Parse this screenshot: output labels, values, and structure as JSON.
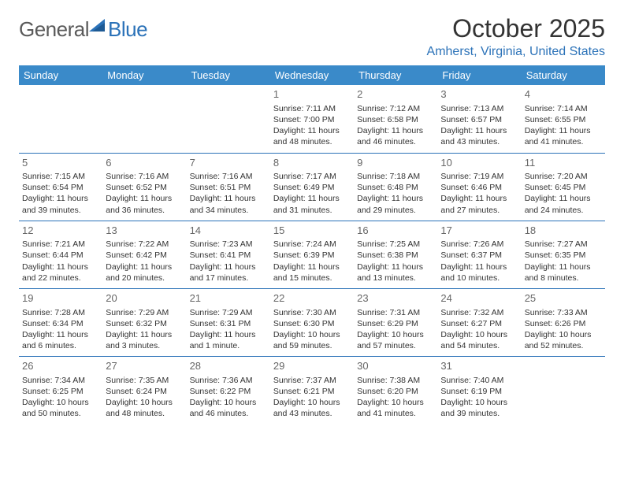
{
  "logo": {
    "text1": "General",
    "text2": "Blue"
  },
  "title": "October 2025",
  "location": "Amherst, Virginia, United States",
  "day_headers": [
    "Sunday",
    "Monday",
    "Tuesday",
    "Wednesday",
    "Thursday",
    "Friday",
    "Saturday"
  ],
  "colors": {
    "header_bg": "#3a8ac9",
    "accent": "#2b72b8",
    "text": "#333333",
    "daynum": "#666666"
  },
  "grid": {
    "leading_blanks": 3,
    "days": [
      {
        "n": 1,
        "sr": "7:11 AM",
        "ss": "7:00 PM",
        "dl": "Daylight: 11 hours and 48 minutes."
      },
      {
        "n": 2,
        "sr": "7:12 AM",
        "ss": "6:58 PM",
        "dl": "Daylight: 11 hours and 46 minutes."
      },
      {
        "n": 3,
        "sr": "7:13 AM",
        "ss": "6:57 PM",
        "dl": "Daylight: 11 hours and 43 minutes."
      },
      {
        "n": 4,
        "sr": "7:14 AM",
        "ss": "6:55 PM",
        "dl": "Daylight: 11 hours and 41 minutes."
      },
      {
        "n": 5,
        "sr": "7:15 AM",
        "ss": "6:54 PM",
        "dl": "Daylight: 11 hours and 39 minutes."
      },
      {
        "n": 6,
        "sr": "7:16 AM",
        "ss": "6:52 PM",
        "dl": "Daylight: 11 hours and 36 minutes."
      },
      {
        "n": 7,
        "sr": "7:16 AM",
        "ss": "6:51 PM",
        "dl": "Daylight: 11 hours and 34 minutes."
      },
      {
        "n": 8,
        "sr": "7:17 AM",
        "ss": "6:49 PM",
        "dl": "Daylight: 11 hours and 31 minutes."
      },
      {
        "n": 9,
        "sr": "7:18 AM",
        "ss": "6:48 PM",
        "dl": "Daylight: 11 hours and 29 minutes."
      },
      {
        "n": 10,
        "sr": "7:19 AM",
        "ss": "6:46 PM",
        "dl": "Daylight: 11 hours and 27 minutes."
      },
      {
        "n": 11,
        "sr": "7:20 AM",
        "ss": "6:45 PM",
        "dl": "Daylight: 11 hours and 24 minutes."
      },
      {
        "n": 12,
        "sr": "7:21 AM",
        "ss": "6:44 PM",
        "dl": "Daylight: 11 hours and 22 minutes."
      },
      {
        "n": 13,
        "sr": "7:22 AM",
        "ss": "6:42 PM",
        "dl": "Daylight: 11 hours and 20 minutes."
      },
      {
        "n": 14,
        "sr": "7:23 AM",
        "ss": "6:41 PM",
        "dl": "Daylight: 11 hours and 17 minutes."
      },
      {
        "n": 15,
        "sr": "7:24 AM",
        "ss": "6:39 PM",
        "dl": "Daylight: 11 hours and 15 minutes."
      },
      {
        "n": 16,
        "sr": "7:25 AM",
        "ss": "6:38 PM",
        "dl": "Daylight: 11 hours and 13 minutes."
      },
      {
        "n": 17,
        "sr": "7:26 AM",
        "ss": "6:37 PM",
        "dl": "Daylight: 11 hours and 10 minutes."
      },
      {
        "n": 18,
        "sr": "7:27 AM",
        "ss": "6:35 PM",
        "dl": "Daylight: 11 hours and 8 minutes."
      },
      {
        "n": 19,
        "sr": "7:28 AM",
        "ss": "6:34 PM",
        "dl": "Daylight: 11 hours and 6 minutes."
      },
      {
        "n": 20,
        "sr": "7:29 AM",
        "ss": "6:32 PM",
        "dl": "Daylight: 11 hours and 3 minutes."
      },
      {
        "n": 21,
        "sr": "7:29 AM",
        "ss": "6:31 PM",
        "dl": "Daylight: 11 hours and 1 minute."
      },
      {
        "n": 22,
        "sr": "7:30 AM",
        "ss": "6:30 PM",
        "dl": "Daylight: 10 hours and 59 minutes."
      },
      {
        "n": 23,
        "sr": "7:31 AM",
        "ss": "6:29 PM",
        "dl": "Daylight: 10 hours and 57 minutes."
      },
      {
        "n": 24,
        "sr": "7:32 AM",
        "ss": "6:27 PM",
        "dl": "Daylight: 10 hours and 54 minutes."
      },
      {
        "n": 25,
        "sr": "7:33 AM",
        "ss": "6:26 PM",
        "dl": "Daylight: 10 hours and 52 minutes."
      },
      {
        "n": 26,
        "sr": "7:34 AM",
        "ss": "6:25 PM",
        "dl": "Daylight: 10 hours and 50 minutes."
      },
      {
        "n": 27,
        "sr": "7:35 AM",
        "ss": "6:24 PM",
        "dl": "Daylight: 10 hours and 48 minutes."
      },
      {
        "n": 28,
        "sr": "7:36 AM",
        "ss": "6:22 PM",
        "dl": "Daylight: 10 hours and 46 minutes."
      },
      {
        "n": 29,
        "sr": "7:37 AM",
        "ss": "6:21 PM",
        "dl": "Daylight: 10 hours and 43 minutes."
      },
      {
        "n": 30,
        "sr": "7:38 AM",
        "ss": "6:20 PM",
        "dl": "Daylight: 10 hours and 41 minutes."
      },
      {
        "n": 31,
        "sr": "7:40 AM",
        "ss": "6:19 PM",
        "dl": "Daylight: 10 hours and 39 minutes."
      }
    ]
  },
  "labels": {
    "sunrise": "Sunrise:",
    "sunset": "Sunset:"
  }
}
